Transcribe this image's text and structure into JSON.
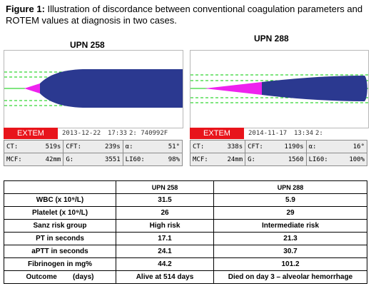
{
  "caption": {
    "label": "Figure 1:",
    "text": " Illustration of discordance between conventional coagulation parameters and ROTEM values at diagnosis in two cases."
  },
  "panels": [
    {
      "title": "UPN 258",
      "test": "EXTEM",
      "date": "2013-12-22",
      "time": "17:33",
      "id": "2: 740992F",
      "params": {
        "ct_label": "CT:",
        "ct": "519s",
        "cft_label": "CFT:",
        "cft": "239s",
        "alpha_label": "α:",
        "alpha": "51°",
        "mcf_label": "MCF:",
        "mcf": "42mm",
        "g_label": "G:",
        "g": "3551",
        "li60_label": "LI60:",
        "li60": "98%"
      }
    },
    {
      "title": "UPN 288",
      "test": "EXTEM",
      "date": "2014-11-17",
      "time": "13:34",
      "id": "2:",
      "params": {
        "ct_label": "CT:",
        "ct": "338s",
        "cft_label": "CFT:",
        "cft": "1190s",
        "alpha_label": "α:",
        "alpha": "16°",
        "mcf_label": "MCF:",
        "mcf": "24mm",
        "g_label": "G:",
        "g": "1560",
        "li60_label": "LI60:",
        "li60": "100%"
      }
    }
  ],
  "colors": {
    "trace": "#2b3990",
    "cft_phase": "#ee22ee",
    "grid": "#00cc00",
    "extem": "#e8141b"
  },
  "table": {
    "headers": [
      "",
      "UPN  258",
      "UPN 288"
    ],
    "rows": [
      {
        "label": "WBC (x 10⁹/L)",
        "a": "31.5",
        "b": "5.9"
      },
      {
        "label": "Platelet (x 10⁹/L)",
        "a": "26",
        "b": "29"
      },
      {
        "label": "Sanz risk group",
        "a": "High risk",
        "b": "Intermediate risk"
      },
      {
        "label": "PT in seconds",
        "a": "17.1",
        "b": "21.3"
      },
      {
        "label": "aPTT in seconds",
        "a": "24.1",
        "b": "30.7"
      },
      {
        "label": "Fibrinogen in mg%",
        "a": "44.2",
        "b": "101.2"
      },
      {
        "label": "Outcome        (days)",
        "a": "Alive at 514 days",
        "b": "Died on day 3 – alveolar hemorrhage"
      }
    ]
  }
}
